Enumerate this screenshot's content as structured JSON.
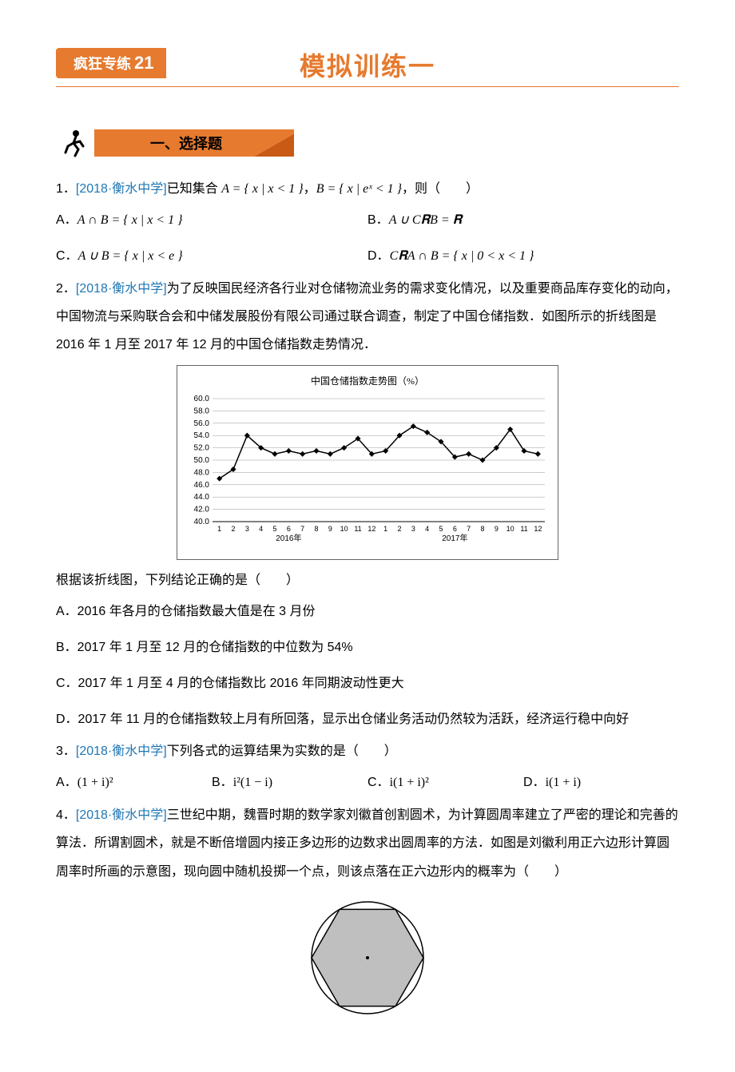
{
  "header": {
    "badge_label": "疯狂专练",
    "badge_num": "21",
    "main_title": "模拟训练一"
  },
  "section1": {
    "title": "一、选择题"
  },
  "q1": {
    "num": "1．",
    "src": "[2018·衡水中学]",
    "text_a": "已知集合 ",
    "math_a": "A = { x | x < 1 }",
    "text_b": "，",
    "math_b": "B = { x | eˣ < 1 }",
    "text_c": "，则（　　）",
    "optA_pre": "A．",
    "optA": "A ∩ B = { x | x < 1 }",
    "optB_pre": "B．",
    "optB": "A ∪ C𝐑B = 𝐑",
    "optC_pre": "C．",
    "optC": "A ∪ B = { x | x < e }",
    "optD_pre": "D．",
    "optD": "C𝐑A ∩ B = { x | 0 < x < 1 }"
  },
  "q2": {
    "num": "2．",
    "src": "[2018·衡水中学]",
    "text": "为了反映国民经济各行业对仓储物流业务的需求变化情况，以及重要商品库存变化的动向，中国物流与采购联合会和中储发展股份有限公司通过联合调查，制定了中国仓储指数．如图所示的折线图是 2016 年 1 月至 2017 年 12 月的中国仓储指数走势情况．",
    "chart_title": "中国仓储指数走势图（%）",
    "yticks": [
      60.0,
      58.0,
      56.0,
      54.0,
      52.0,
      50.0,
      48.0,
      46.0,
      44.0,
      42.0,
      40.0
    ],
    "xticks": [
      "1",
      "2",
      "3",
      "4",
      "5",
      "6",
      "7",
      "8",
      "9",
      "10",
      "11",
      "12",
      "1",
      "2",
      "3",
      "4",
      "5",
      "6",
      "7",
      "8",
      "9",
      "10",
      "11",
      "12"
    ],
    "xlabel_left": "2016年",
    "xlabel_right": "2017年",
    "values": [
      47.0,
      48.5,
      54.0,
      52.0,
      51.0,
      51.5,
      51.0,
      51.5,
      51.0,
      52.0,
      53.5,
      51.0,
      51.5,
      54.0,
      55.5,
      54.5,
      53.0,
      50.5,
      51.0,
      50.0,
      52.0,
      55.0,
      51.5,
      51.0
    ],
    "after": "根据该折线图，下列结论正确的是（　　）",
    "optA": "A．2016 年各月的仓储指数最大值是在 3 月份",
    "optB": "B．2017 年 1 月至 12 月的仓储指数的中位数为 54%",
    "optC": "C．2017 年 1 月至 4 月的仓储指数比 2016 年同期波动性更大",
    "optD": "D．2017 年 11 月的仓储指数较上月有所回落，显示出仓储业务活动仍然较为活跃，经济运行稳中向好"
  },
  "q3": {
    "num": "3．",
    "src": "[2018·衡水中学]",
    "text": "下列各式的运算结果为实数的是（　　）",
    "optA_pre": "A．",
    "optA": "(1 + i)²",
    "optB_pre": "B．",
    "optB": "i²(1 − i)",
    "optC_pre": "C．",
    "optC": "i(1 + i)²",
    "optD_pre": "D．",
    "optD": "i(1 + i)"
  },
  "q4": {
    "num": "4．",
    "src": "[2018·衡水中学]",
    "text": "三世纪中期，魏晋时期的数学家刘徽首创割圆术，为计算圆周率建立了严密的理论和完善的算法．所谓割圆术，就是不断倍增圆内接正多边形的边数求出圆周率的方法．如图是刘徽利用正六边形计算圆周率时所画的示意图，现向圆中随机投掷一个点，则该点落在正六边形内的概率为（　　）"
  },
  "chart_style": {
    "line_color": "#000000",
    "marker_color": "#000000",
    "grid_color": "#999999",
    "background": "#ffffff",
    "ylim": [
      40,
      60
    ]
  }
}
